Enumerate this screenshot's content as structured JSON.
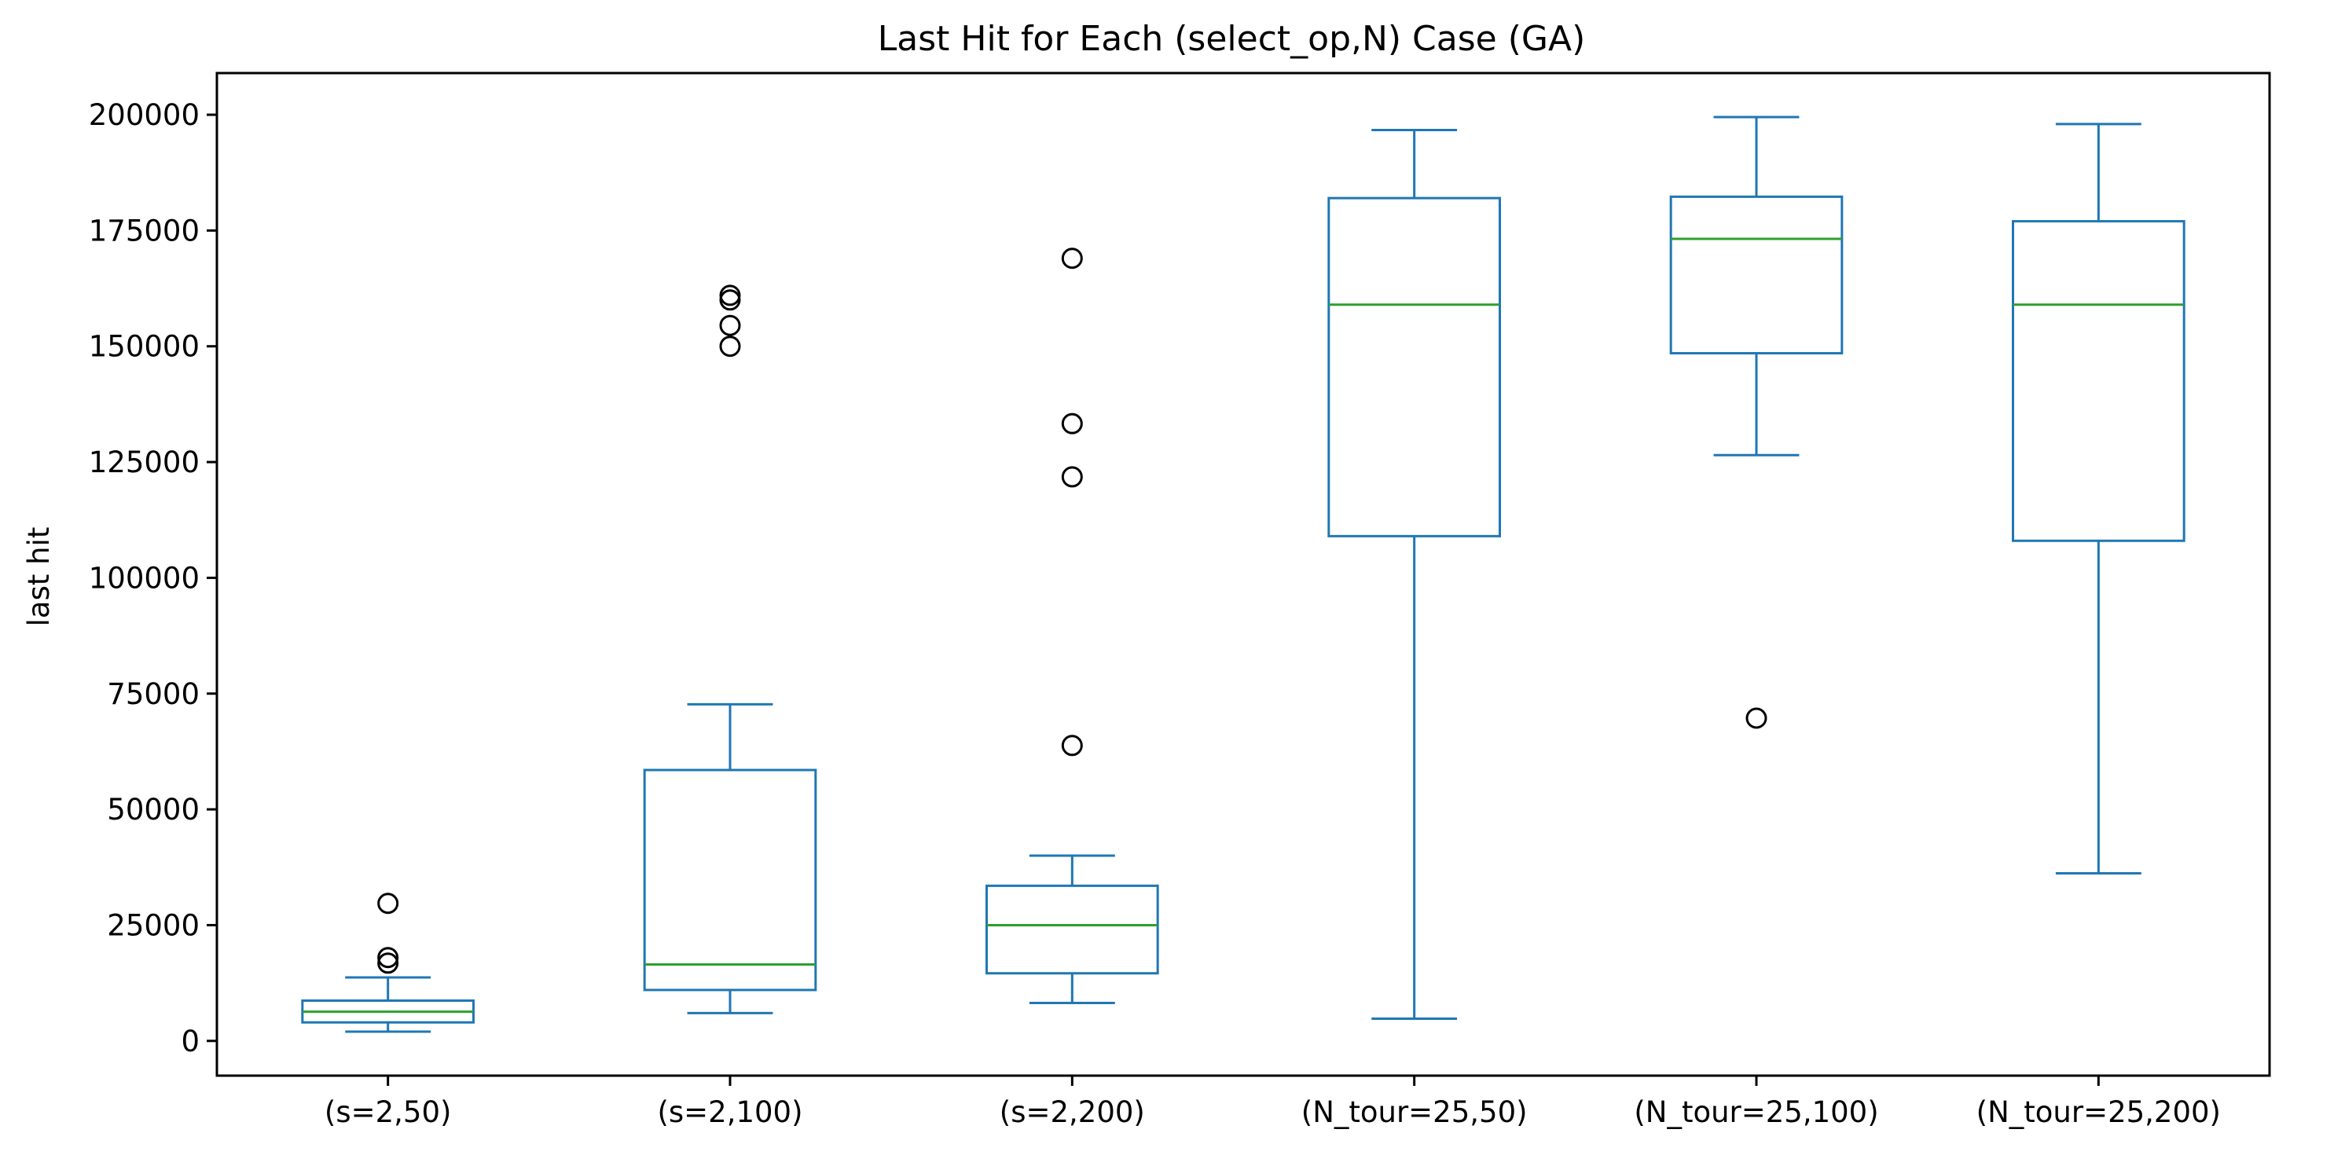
{
  "chart_data": {
    "type": "box",
    "title": "Last Hit for Each (select_op,N) Case (GA)",
    "xlabel": "",
    "ylabel": "last hit",
    "ylim": [
      -7500,
      209000
    ],
    "yticks": [
      0,
      25000,
      50000,
      75000,
      100000,
      125000,
      150000,
      175000,
      200000
    ],
    "grid": false,
    "box_color": "#1f77b4",
    "median_color": "#2ca02c",
    "outlier_color": "#000000",
    "categories": [
      "(s=2,50)",
      "(s=2,100)",
      "(s=2,200)",
      "(N_tour=25,50)",
      "(N_tour=25,100)",
      "(N_tour=25,200)"
    ],
    "boxes": [
      {
        "whisker_low": 2000,
        "q1": 4000,
        "median": 6300,
        "q3": 8700,
        "whisker_high": 13700,
        "outliers": [
          16800,
          18000,
          29700
        ]
      },
      {
        "whisker_low": 6000,
        "q1": 11000,
        "median": 16500,
        "q3": 58500,
        "whisker_high": 72700,
        "outliers": [
          150000,
          154500,
          160000,
          161000
        ]
      },
      {
        "whisker_low": 8200,
        "q1": 14600,
        "median": 25000,
        "q3": 33500,
        "whisker_high": 40000,
        "outliers": [
          63800,
          121800,
          133300,
          169000
        ]
      },
      {
        "whisker_low": 4800,
        "q1": 109000,
        "median": 159000,
        "q3": 182000,
        "whisker_high": 196700,
        "outliers": []
      },
      {
        "whisker_low": 126500,
        "q1": 148500,
        "median": 173200,
        "q3": 182300,
        "whisker_high": 199500,
        "outliers": [
          69700
        ]
      },
      {
        "whisker_low": 36200,
        "q1": 108000,
        "median": 159000,
        "q3": 177000,
        "whisker_high": 198000,
        "outliers": []
      }
    ]
  }
}
